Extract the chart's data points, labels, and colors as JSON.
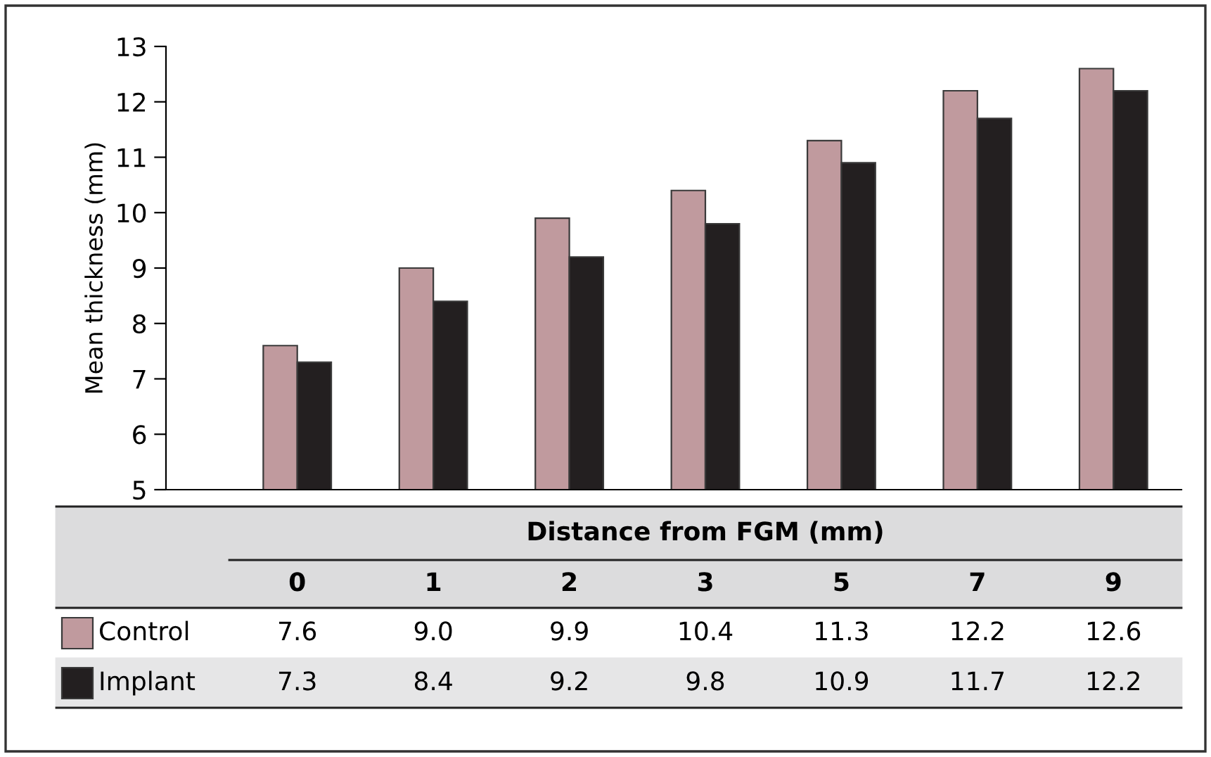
{
  "chart_data": {
    "type": "bar",
    "xlabel": "Distance from FGM (mm)",
    "ylabel": "Mean thickness (mm)",
    "categories": [
      "0",
      "1",
      "2",
      "3",
      "5",
      "7",
      "9"
    ],
    "series": [
      {
        "name": "Control",
        "color": "#c09a9e",
        "values": [
          7.6,
          9.0,
          9.9,
          10.4,
          11.3,
          12.2,
          12.6
        ],
        "value_labels": [
          "7.6",
          "9.0",
          "9.9",
          "10.4",
          "11.3",
          "12.2",
          "12.6"
        ]
      },
      {
        "name": "Implant",
        "color": "#231f20",
        "values": [
          7.3,
          8.4,
          9.2,
          9.8,
          10.9,
          11.7,
          12.2
        ],
        "value_labels": [
          "7.3",
          "8.4",
          "9.2",
          "9.8",
          "10.9",
          "11.7",
          "12.2"
        ]
      }
    ],
    "ylim": [
      5,
      13
    ],
    "yticks": [
      5,
      6,
      7,
      8,
      9,
      10,
      11,
      12,
      13
    ],
    "grid": false,
    "legend": "bottom"
  }
}
